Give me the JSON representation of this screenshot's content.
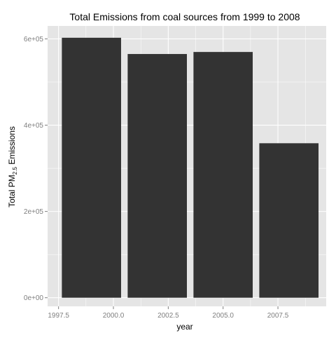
{
  "chart_data": {
    "type": "bar",
    "title": "Total Emissions from coal sources from 1999 to 2008",
    "xlabel": "year",
    "ylabel_main": "Total PM",
    "ylabel_sub": "2.5",
    "ylabel_tail": " Emissions",
    "x": [
      1999,
      2002,
      2005,
      2008
    ],
    "values": [
      602624,
      564936,
      569654,
      358084
    ],
    "bar_width": 2.7,
    "xlim": [
      1997.0,
      2009.7
    ],
    "ylim": [
      -20000,
      630000
    ],
    "x_ticks": [
      1997.5,
      2000.0,
      2002.5,
      2005.0,
      2007.5
    ],
    "x_tick_labels": [
      "1997.5",
      "2000.0",
      "2002.5",
      "2005.0",
      "2007.5"
    ],
    "y_ticks": [
      0,
      200000,
      400000,
      600000
    ],
    "y_tick_labels": [
      "0e+00",
      "2e+05",
      "4e+05",
      "6e+05"
    ],
    "grid": true,
    "legend": "none",
    "bar_color": "#333333",
    "panel_color": "#e5e5e5",
    "grid_color": "#ffffff"
  }
}
